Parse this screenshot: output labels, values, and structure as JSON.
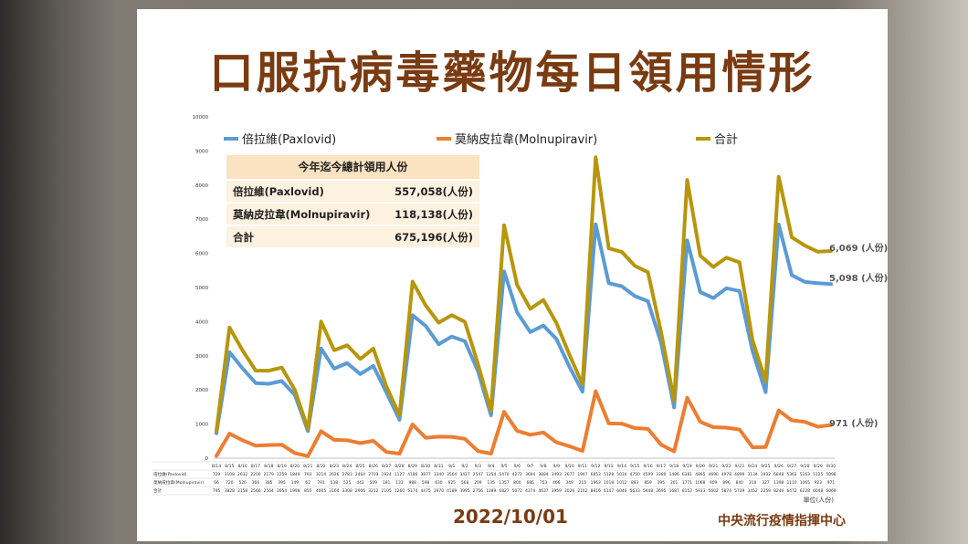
{
  "title": "口服抗病毒藥物每日領用情形",
  "date": "2022/10/01",
  "organization": "中央流行疫情指揮中心",
  "unit_label": "單位(人份)",
  "summary_table": {
    "header": "今年迄今總計領用人份",
    "rows": [
      {
        "label": "倍拉維(Paxlovid)",
        "value": "557,058(人份)"
      },
      {
        "label": "莫納皮拉韋(Molnupiravir)",
        "value": "118,138(人份)"
      },
      {
        "label": "合計",
        "value": "675,196(人份)"
      }
    ]
  },
  "end_labels": {
    "total": "6,069 (人份)",
    "paxlovid": "5,098 (人份)",
    "molnupiravir": "971 (人份)"
  },
  "colors": {
    "paxlovid": "#5b9bd5",
    "molnupiravir": "#ed7d31",
    "total": "#b8960c",
    "title": "#7a3b12"
  },
  "chart_data": {
    "type": "line",
    "ylim": [
      0,
      10000
    ],
    "yticks": [
      0,
      1000,
      2000,
      3000,
      4000,
      5000,
      6000,
      7000,
      8000,
      9000,
      10000
    ],
    "legend_position": "top",
    "grid": false,
    "categories": [
      "8/14",
      "8/15",
      "8/16",
      "8/17",
      "8/18",
      "8/19",
      "8/20",
      "8/21",
      "8/22",
      "8/23",
      "8/24",
      "8/25",
      "8/26",
      "8/27",
      "8/28",
      "8/29",
      "8/30",
      "8/31",
      "9/1",
      "9/2",
      "9/3",
      "9/4",
      "9/5",
      "9/6",
      "9/7",
      "9/8",
      "9/9",
      "9/10",
      "9/11",
      "9/12",
      "9/13",
      "9/14",
      "9/15",
      "9/16",
      "9/17",
      "9/18",
      "9/19",
      "9/20",
      "9/21",
      "9/22",
      "9/23",
      "9/24",
      "9/25",
      "9/26",
      "9/27",
      "9/28",
      "9/29",
      "9/30"
    ],
    "series": [
      {
        "name": "倍拉維(Paxlovid)",
        "key": "paxlovid",
        "values": [
          729,
          3108,
          2632,
          2200,
          2179,
          2259,
          1849,
          793,
          3214,
          2626,
          2783,
          2464,
          2703,
          1924,
          1127,
          4186,
          3877,
          3340,
          3564,
          3427,
          2547,
          1254,
          5470,
          4272,
          3694,
          3884,
          3493,
          2677,
          1947,
          6853,
          5128,
          5034,
          4750,
          4599,
          3380,
          1486,
          6381,
          4865,
          4690,
          4978,
          4899,
          3134,
          1932,
          6848,
          5362,
          5163,
          5125,
          5098
        ]
      },
      {
        "name": "莫納皮拉韋(Molnupiravir)",
        "key": "molnupiravir",
        "values": [
          66,
          720,
          526,
          366,
          385,
          395,
          149,
          62,
          791,
          538,
          525,
          442,
          509,
          181,
          133,
          988,
          598,
          630,
          625,
          568,
          209,
          135,
          1357,
          800,
          686,
          753,
          466,
          349,
          215,
          1963,
          1018,
          1012,
          883,
          859,
          395,
          201,
          1771,
          1068,
          909,
          896,
          840,
          318,
          327,
          1398,
          1110,
          1065,
          923,
          971
        ]
      },
      {
        "name": "合計",
        "key": "total",
        "values": [
          795,
          3828,
          3158,
          2566,
          2564,
          2654,
          1998,
          855,
          4005,
          3164,
          3308,
          2906,
          3212,
          2105,
          1260,
          5174,
          4475,
          3970,
          4189,
          3995,
          2756,
          1389,
          6827,
          5072,
          4374,
          4637,
          3959,
          3026,
          2162,
          8816,
          6147,
          6046,
          5633,
          5448,
          3695,
          1687,
          8152,
          5933,
          5602,
          5874,
          5739,
          3452,
          2259,
          8246,
          6472,
          6228,
          6048,
          6069
        ]
      }
    ],
    "table_row_labels": [
      "倍拉維(Paxlovid)",
      "莫納皮拉韋(Molnupiravir)",
      "合計"
    ]
  }
}
